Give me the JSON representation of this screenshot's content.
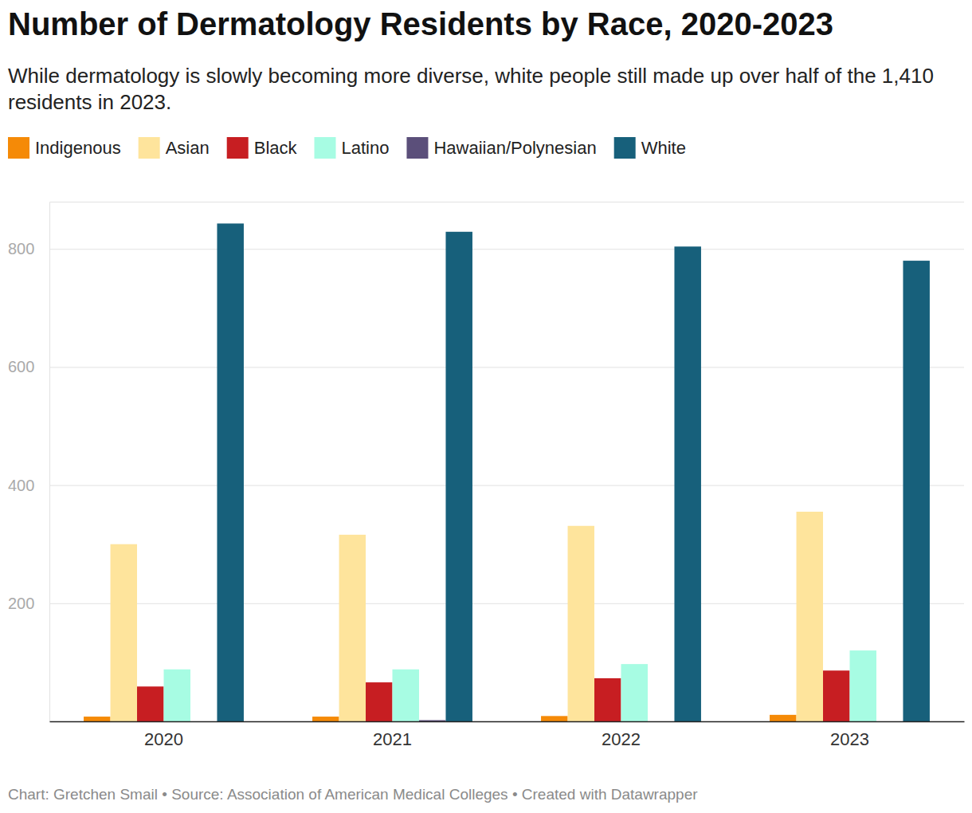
{
  "chart_data": {
    "type": "bar",
    "title": "Number of Dermatology Residents by Race, 2020-2023",
    "subtitle": "While dermatology is slowly becoming more diverse, white people still made up over half of the 1,410 residents in 2023.",
    "caption": "Chart: Gretchen Smail • Source: Association of American Medical Colleges • Created with Datawrapper",
    "categories": [
      "2020",
      "2021",
      "2022",
      "2023"
    ],
    "series": [
      {
        "name": "Indigenous",
        "color": "#f58a07",
        "values": [
          8,
          8,
          9,
          11
        ]
      },
      {
        "name": "Asian",
        "color": "#fee49c",
        "values": [
          300,
          316,
          331,
          355
        ]
      },
      {
        "name": "Black",
        "color": "#c71e22",
        "values": [
          59,
          66,
          73,
          86
        ]
      },
      {
        "name": "Latino",
        "color": "#a7fce3",
        "values": [
          88,
          88,
          97,
          120
        ]
      },
      {
        "name": "Hawaiian/Polynesian",
        "color": "#5b4f7a",
        "values": [
          0,
          2,
          0,
          0
        ]
      },
      {
        "name": "White",
        "color": "#17607b",
        "values": [
          843,
          829,
          804,
          780
        ]
      }
    ],
    "ylim": [
      0,
      880
    ],
    "yticks": [
      200,
      400,
      600,
      800
    ],
    "grid": true,
    "legend": "top"
  }
}
